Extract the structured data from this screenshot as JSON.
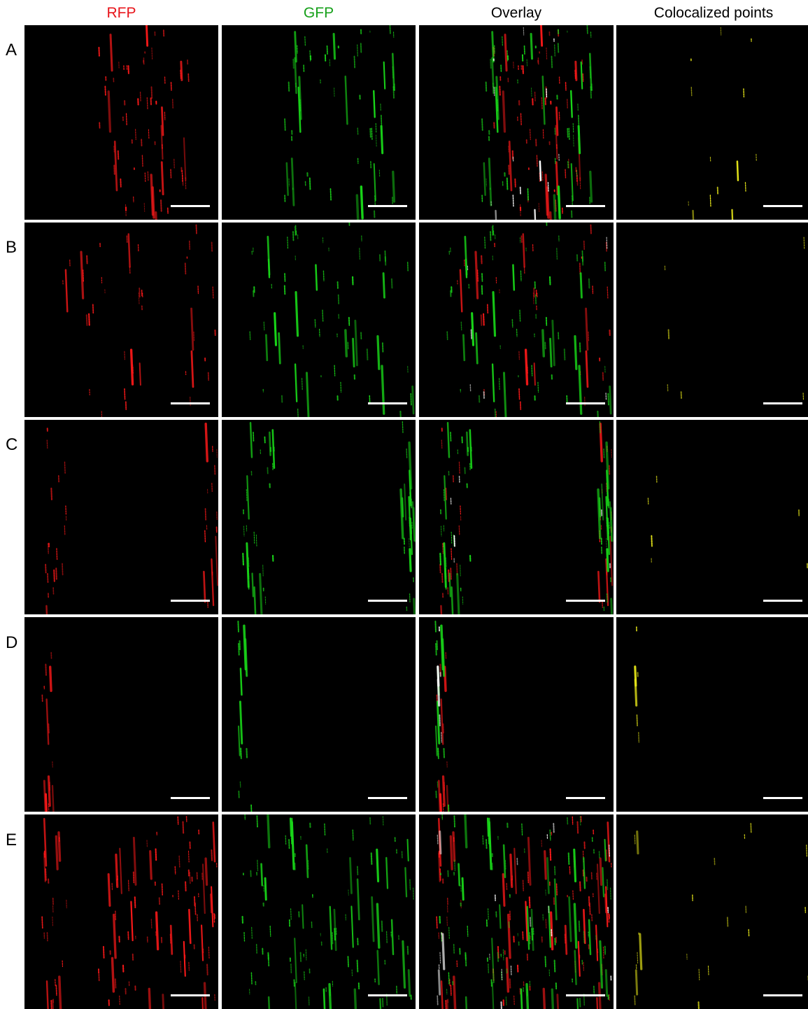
{
  "figure": {
    "columns": [
      {
        "label": "RFP",
        "color": "#e8151b"
      },
      {
        "label": "GFP",
        "color": "#16a01a"
      },
      {
        "label": "Overlay",
        "color": "#000000"
      },
      {
        "label": "Colocalized points",
        "color": "#000000"
      }
    ],
    "rows": [
      "A",
      "B",
      "C",
      "D",
      "E"
    ],
    "channel_colors": {
      "rfp": "#ff1a1a",
      "gfp": "#19d619",
      "colocalized": "#e6e619",
      "overlay_coloc": "#ffffff",
      "scale_bar": "#ffffff",
      "background": "#000000"
    }
  }
}
